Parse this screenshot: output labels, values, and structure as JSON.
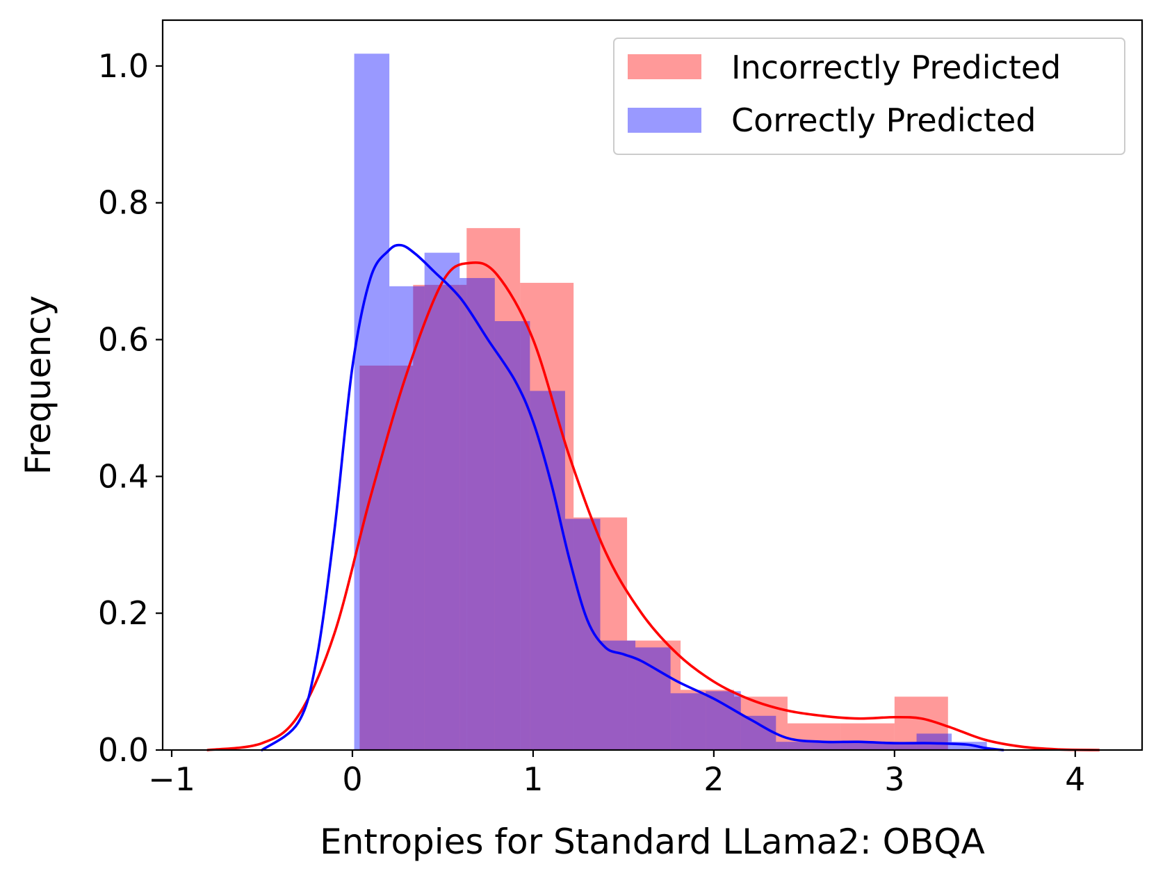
{
  "chart_data": {
    "type": "histogram-with-kde",
    "title": "",
    "xlabel": "Entropies for Standard LLama2: OBQA",
    "ylabel": "Frequency",
    "xlim": [
      -1.05,
      4.37
    ],
    "ylim": [
      0,
      1.067
    ],
    "xticks": [
      -1,
      0,
      1,
      2,
      3,
      4
    ],
    "xtick_labels": [
      "−1",
      "0",
      "1",
      "2",
      "3",
      "4"
    ],
    "yticks": [
      0.0,
      0.2,
      0.4,
      0.6,
      0.8,
      1.0
    ],
    "ytick_labels": [
      "0.0",
      "0.2",
      "0.4",
      "0.6",
      "0.8",
      "1.0"
    ],
    "legend_position": "top-right",
    "series": [
      {
        "name": "Incorrectly Predicted",
        "color": "#ff0000",
        "fill_color": "#ff9999",
        "bin_edges": [
          0.04,
          0.336,
          0.632,
          0.928,
          1.224,
          1.52,
          1.816,
          2.112,
          2.408,
          2.704,
          3.0,
          3.296
        ],
        "bin_heights": [
          0.562,
          0.68,
          0.763,
          0.683,
          0.34,
          0.16,
          0.088,
          0.078,
          0.039,
          0.039,
          0.078
        ],
        "kde": {
          "x": [
            -0.8,
            -0.5,
            -0.3,
            -0.1,
            0.1,
            0.3,
            0.5,
            0.65,
            0.8,
            1.0,
            1.2,
            1.4,
            1.6,
            1.8,
            2.0,
            2.2,
            2.4,
            2.6,
            2.8,
            3.0,
            3.15,
            3.3,
            3.5,
            3.7,
            3.9,
            4.13
          ],
          "y": [
            0.0,
            0.01,
            0.05,
            0.17,
            0.37,
            0.55,
            0.685,
            0.712,
            0.695,
            0.6,
            0.43,
            0.29,
            0.2,
            0.14,
            0.1,
            0.074,
            0.058,
            0.05,
            0.046,
            0.048,
            0.046,
            0.034,
            0.015,
            0.005,
            0.001,
            0.0
          ]
        }
      },
      {
        "name": "Correctly Predicted",
        "color": "#0000ff",
        "fill_color": "#9999ff",
        "bin_edges": [
          0.01,
          0.2045,
          0.399,
          0.5935,
          0.788,
          0.9825,
          1.177,
          1.3715,
          1.566,
          1.7605,
          1.955,
          2.1495,
          2.344,
          2.5385,
          2.733,
          2.9275,
          3.122,
          3.3165,
          3.511
        ],
        "bin_heights": [
          1.018,
          0.678,
          0.727,
          0.69,
          0.627,
          0.525,
          0.338,
          0.16,
          0.15,
          0.083,
          0.086,
          0.05,
          0.012,
          0.012,
          0.012,
          0.012,
          0.024,
          0.012
        ],
        "kde": {
          "x": [
            -0.5,
            -0.3,
            -0.2,
            -0.1,
            0.0,
            0.1,
            0.2,
            0.27,
            0.35,
            0.45,
            0.6,
            0.75,
            0.9,
            1.0,
            1.1,
            1.2,
            1.3,
            1.4,
            1.5,
            1.6,
            1.8,
            2.0,
            2.2,
            2.4,
            2.6,
            2.8,
            3.0,
            3.2,
            3.4,
            3.5,
            3.6
          ],
          "y": [
            0.0,
            0.04,
            0.13,
            0.32,
            0.56,
            0.69,
            0.73,
            0.738,
            0.725,
            0.7,
            0.66,
            0.6,
            0.54,
            0.48,
            0.39,
            0.28,
            0.19,
            0.15,
            0.14,
            0.13,
            0.1,
            0.075,
            0.045,
            0.018,
            0.012,
            0.012,
            0.01,
            0.01,
            0.008,
            0.003,
            0.0
          ]
        }
      }
    ]
  }
}
